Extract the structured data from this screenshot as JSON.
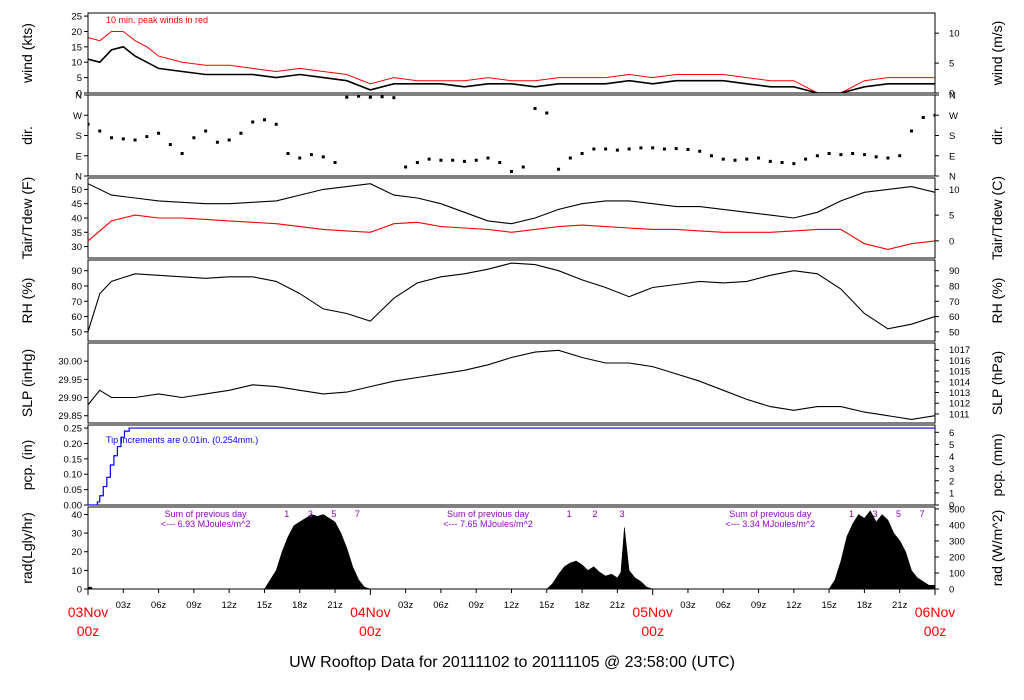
{
  "title": "UW Rooftop Data for 20111102  to  20111105 @ 23:58:00  (UTC)",
  "colors": {
    "title": "#0000cc",
    "date_labels": "#ff0000",
    "peak": "#ff0000",
    "tdew": "#ff0000",
    "precip": "#0000ff",
    "annotation": "#9900cc",
    "line": "#000000"
  },
  "chart_data": [
    {
      "name": "wind",
      "type": "line",
      "ylabel_left": "wind (kts)",
      "ylabel_right": "wind (m/s)",
      "ylim": [
        0,
        26
      ],
      "yticks_left": [
        0,
        5,
        10,
        15,
        20,
        25
      ],
      "yticks_right_values": [
        0,
        5,
        10
      ],
      "ytick_right_factor": 0.5144,
      "annotation": "10 min. peak winds in red",
      "series": [
        {
          "x": [
            0,
            1,
            2,
            3,
            4,
            5,
            6,
            8,
            10,
            12,
            14,
            16,
            18,
            20,
            22,
            24,
            26,
            28,
            30,
            32,
            34,
            36,
            38,
            40,
            42,
            44,
            46,
            48,
            50,
            52,
            54,
            56,
            58,
            60,
            62,
            64,
            66,
            68,
            70,
            72
          ],
          "y": [
            11,
            10,
            14,
            15,
            12,
            10,
            8,
            7,
            6,
            6,
            6,
            5,
            6,
            5,
            4,
            1,
            3,
            3,
            3,
            2,
            3,
            3,
            2,
            3,
            3,
            3,
            4,
            3,
            4,
            4,
            4,
            3,
            2,
            2,
            0,
            0,
            2,
            3,
            3,
            3
          ]
        },
        {
          "x": [
            0,
            1,
            2,
            3,
            4,
            5,
            6,
            8,
            10,
            12,
            14,
            16,
            18,
            20,
            22,
            24,
            26,
            28,
            30,
            32,
            34,
            36,
            38,
            40,
            42,
            44,
            46,
            48,
            50,
            52,
            54,
            56,
            58,
            60,
            62,
            64,
            66,
            68,
            70,
            72
          ],
          "y": [
            18,
            17,
            20,
            20,
            17,
            15,
            12,
            10,
            9,
            9,
            8,
            7,
            8,
            7,
            6,
            3,
            5,
            4,
            4,
            4,
            5,
            4,
            4,
            5,
            5,
            5,
            6,
            5,
            6,
            6,
            6,
            5,
            4,
            4,
            0,
            0,
            4,
            5,
            5,
            5
          ]
        }
      ]
    },
    {
      "name": "dir",
      "type": "scatter",
      "ylabel_left": "dir.",
      "ylabel_right": "dir.",
      "ylim": [
        0,
        360
      ],
      "ytick_values": [
        0,
        90,
        180,
        270,
        360
      ],
      "ytick_labels": [
        "N",
        "E",
        "S",
        "W",
        "N"
      ],
      "x": [
        0,
        1,
        2,
        3,
        4,
        5,
        6,
        7,
        8,
        9,
        10,
        11,
        12,
        13,
        14,
        15,
        16,
        17,
        18,
        19,
        20,
        21,
        22,
        23,
        24,
        25,
        26,
        27,
        28,
        29,
        30,
        31,
        32,
        33,
        34,
        35,
        36,
        37,
        38,
        39,
        40,
        41,
        42,
        43,
        44,
        45,
        46,
        47,
        48,
        49,
        50,
        51,
        52,
        53,
        54,
        55,
        56,
        57,
        58,
        59,
        60,
        61,
        62,
        63,
        64,
        65,
        66,
        67,
        68,
        69,
        70,
        71,
        72
      ],
      "y": [
        230,
        200,
        170,
        165,
        160,
        175,
        190,
        140,
        100,
        170,
        200,
        150,
        160,
        190,
        240,
        250,
        230,
        100,
        80,
        95,
        85,
        60,
        350,
        355,
        350,
        352,
        348,
        40,
        60,
        75,
        70,
        70,
        65,
        70,
        80,
        60,
        20,
        40,
        300,
        280,
        30,
        80,
        100,
        120,
        120,
        115,
        120,
        125,
        125,
        120,
        122,
        118,
        110,
        90,
        75,
        70,
        75,
        80,
        65,
        60,
        55,
        75,
        90,
        100,
        95,
        100,
        95,
        85,
        80,
        90,
        200,
        260,
        270
      ]
    },
    {
      "name": "temp",
      "type": "line",
      "ylabel_left": "Tair/Tdew (F)",
      "ylabel_right": "Tair/Tdew (C)",
      "ylim": [
        26,
        54
      ],
      "yticks_left": [
        30,
        35,
        40,
        45,
        50
      ],
      "yticks_right_values": [
        0,
        5,
        10
      ],
      "series": [
        {
          "name": "Tair",
          "x": [
            0,
            2,
            4,
            6,
            8,
            10,
            12,
            14,
            16,
            18,
            20,
            22,
            24,
            26,
            28,
            30,
            32,
            34,
            36,
            38,
            40,
            42,
            44,
            46,
            48,
            50,
            52,
            54,
            56,
            58,
            60,
            62,
            64,
            66,
            68,
            70,
            72
          ],
          "y": [
            52,
            48,
            47,
            46,
            45.5,
            45,
            45,
            45.5,
            46,
            48,
            50,
            51,
            52,
            48,
            47,
            45,
            42,
            39,
            38,
            40,
            43,
            45,
            46,
            46,
            45,
            44,
            44,
            43,
            42,
            41,
            40,
            42,
            46,
            49,
            50,
            51,
            49
          ]
        },
        {
          "name": "Tdew",
          "x": [
            0,
            2,
            4,
            6,
            8,
            10,
            12,
            14,
            16,
            18,
            20,
            22,
            24,
            26,
            28,
            30,
            32,
            34,
            36,
            38,
            40,
            42,
            44,
            46,
            48,
            50,
            52,
            54,
            56,
            58,
            60,
            62,
            64,
            66,
            68,
            70,
            72
          ],
          "y": [
            32,
            39,
            41,
            40,
            40,
            39.5,
            39,
            38.5,
            38,
            37,
            36,
            35.5,
            35,
            38,
            38.5,
            37,
            36.5,
            36,
            35,
            36,
            37,
            37.5,
            37,
            36.5,
            36,
            36,
            35.5,
            35,
            35,
            35,
            35.5,
            36,
            36,
            31,
            29,
            31,
            32
          ]
        }
      ]
    },
    {
      "name": "rh",
      "type": "line",
      "ylabel_left": "RH (%)",
      "ylabel_right": "RH (%)",
      "ylim": [
        44,
        97
      ],
      "yticks_left": [
        50,
        60,
        70,
        80,
        90
      ],
      "yticks_right_values": [
        50,
        60,
        70,
        80,
        90
      ],
      "series": [
        {
          "x": [
            0,
            1,
            2,
            4,
            6,
            8,
            10,
            12,
            14,
            16,
            18,
            20,
            22,
            24,
            26,
            28,
            30,
            32,
            34,
            36,
            38,
            40,
            42,
            44,
            46,
            48,
            50,
            52,
            54,
            56,
            58,
            60,
            62,
            64,
            66,
            68,
            70,
            72
          ],
          "y": [
            50,
            75,
            83,
            88,
            87,
            86,
            85,
            86,
            86,
            83,
            75,
            65,
            62,
            57,
            72,
            82,
            86,
            88,
            91,
            95,
            94,
            90,
            84,
            79,
            73,
            79,
            81,
            83,
            82,
            83,
            87,
            90,
            88,
            78,
            62,
            52,
            55,
            60
          ]
        }
      ]
    },
    {
      "name": "slp",
      "type": "line",
      "ylabel_left": "SLP (inHg)",
      "ylabel_right": "SLP (hPa)",
      "ylim": [
        29.83,
        30.05
      ],
      "yticks_left": [
        29.85,
        29.9,
        29.95,
        30.0
      ],
      "ytick_left_labels": [
        "29.85",
        "29.90",
        "29.95",
        "30.00"
      ],
      "yticks_right_values": [
        1011,
        1012,
        1013,
        1014,
        1015,
        1016,
        1017
      ],
      "series": [
        {
          "x": [
            0,
            1,
            2,
            4,
            6,
            8,
            10,
            12,
            14,
            16,
            18,
            20,
            22,
            24,
            26,
            28,
            30,
            32,
            34,
            36,
            38,
            40,
            42,
            44,
            46,
            48,
            50,
            52,
            54,
            56,
            58,
            60,
            62,
            64,
            66,
            68,
            70,
            72
          ],
          "y": [
            29.88,
            29.92,
            29.9,
            29.9,
            29.91,
            29.9,
            29.91,
            29.92,
            29.935,
            29.93,
            29.92,
            29.91,
            29.915,
            29.93,
            29.945,
            29.955,
            29.965,
            29.975,
            29.99,
            30.01,
            30.025,
            30.03,
            30.01,
            29.995,
            29.995,
            29.985,
            29.965,
            29.945,
            29.92,
            29.895,
            29.875,
            29.865,
            29.875,
            29.875,
            29.86,
            29.85,
            29.84,
            29.85
          ]
        }
      ]
    },
    {
      "name": "pcp",
      "type": "line",
      "ylabel_left": "pcp. (in)",
      "ylabel_right": "pcp. (mm)",
      "ylim": [
        0,
        0.26
      ],
      "yticks_left": [
        0,
        0.05,
        0.1,
        0.15,
        0.2,
        0.25
      ],
      "ytick_left_labels": [
        "0.00",
        "0.05",
        "0.10",
        "0.15",
        "0.20",
        "0.25"
      ],
      "yticks_right_values": [
        0,
        1,
        2,
        3,
        4,
        5,
        6
      ],
      "annotation": "Tip increments are 0.01in. (0.254mm.)",
      "series": [
        {
          "x": [
            0,
            0.6,
            0.8,
            1.0,
            1.3,
            1.6,
            1.9,
            2.2,
            2.5,
            2.8,
            3.1,
            3.5,
            4.0,
            72
          ],
          "y": [
            0,
            0,
            0.01,
            0.03,
            0.06,
            0.09,
            0.13,
            0.16,
            0.19,
            0.22,
            0.24,
            0.25,
            0.25,
            0.25
          ]
        }
      ]
    },
    {
      "name": "rad",
      "type": "area",
      "ylabel_left": "rad(Lgly/hr)",
      "ylabel_right": "rad (W/m^2)",
      "ylim": [
        0,
        44
      ],
      "yticks_left": [
        0,
        10,
        20,
        30,
        40
      ],
      "yticks_right_values": [
        0,
        100,
        200,
        300,
        400,
        500
      ],
      "series": [
        {
          "x": [
            0,
            0.3,
            0.4,
            15,
            15.5,
            16,
            16.5,
            17,
            17.5,
            18,
            18.5,
            19,
            19.5,
            20,
            20.5,
            21,
            21.5,
            22,
            22.5,
            23,
            23.5,
            24,
            39,
            39.5,
            40,
            40.5,
            41,
            41.5,
            42,
            42.5,
            43,
            43.5,
            44,
            44.5,
            45,
            45.3,
            45.6,
            46,
            46.5,
            47,
            47.5,
            48,
            63,
            63.5,
            64,
            64.5,
            65,
            65.5,
            66,
            66.5,
            67,
            67.5,
            68,
            68.5,
            69,
            69.5,
            70,
            70.5,
            71,
            71.5,
            72
          ],
          "y": [
            1,
            1,
            0,
            0,
            5,
            10,
            20,
            28,
            34,
            36,
            38,
            40,
            39,
            40,
            38,
            36,
            30,
            22,
            12,
            5,
            1,
            0,
            0,
            3,
            8,
            12,
            14,
            15,
            13,
            10,
            12,
            9,
            7,
            8,
            6,
            9,
            33,
            10,
            6,
            4,
            1,
            0,
            0,
            5,
            15,
            28,
            35,
            40,
            38,
            42,
            36,
            40,
            37,
            30,
            26,
            20,
            10,
            6,
            4,
            2,
            2
          ]
        }
      ],
      "day_markers": [
        {
          "text": "1",
          "x": 16.9
        },
        {
          "text": "3",
          "x": 18.9
        },
        {
          "text": "5",
          "x": 20.9
        },
        {
          "text": "7",
          "x": 22.9
        },
        {
          "text": "1",
          "x": 40.9
        },
        {
          "text": "2",
          "x": 43.1
        },
        {
          "text": "3",
          "x": 45.4
        },
        {
          "text": "1",
          "x": 64.9
        },
        {
          "text": "3",
          "x": 66.9
        },
        {
          "text": "5",
          "x": 68.9
        },
        {
          "text": "7",
          "x": 70.9
        }
      ],
      "annotations": [
        {
          "line1": "Sum of previous day",
          "line2": "<--- 6.93 MJoules/m^2",
          "x": 10
        },
        {
          "line1": "Sum of previous day",
          "line2": "<--- 7.65 MJoules/m^2",
          "x": 34
        },
        {
          "line1": "Sum of previous day",
          "line2": "<--- 3.34 MJoules/m^2",
          "x": 58
        }
      ]
    }
  ],
  "x_axis": {
    "xlim": [
      0,
      72
    ],
    "hour_ticks": [
      {
        "x": 3,
        "label": "03z"
      },
      {
        "x": 6,
        "label": "06z"
      },
      {
        "x": 9,
        "label": "09z"
      },
      {
        "x": 12,
        "label": "12z"
      },
      {
        "x": 15,
        "label": "15z"
      },
      {
        "x": 18,
        "label": "18z"
      },
      {
        "x": 21,
        "label": "21z"
      },
      {
        "x": 27,
        "label": "03z"
      },
      {
        "x": 30,
        "label": "06z"
      },
      {
        "x": 33,
        "label": "09z"
      },
      {
        "x": 36,
        "label": "12z"
      },
      {
        "x": 39,
        "label": "15z"
      },
      {
        "x": 42,
        "label": "18z"
      },
      {
        "x": 45,
        "label": "21z"
      },
      {
        "x": 51,
        "label": "03z"
      },
      {
        "x": 54,
        "label": "06z"
      },
      {
        "x": 57,
        "label": "09z"
      },
      {
        "x": 60,
        "label": "12z"
      },
      {
        "x": 63,
        "label": "15z"
      },
      {
        "x": 66,
        "label": "18z"
      },
      {
        "x": 69,
        "label": "21z"
      }
    ],
    "date_ticks": [
      {
        "x": 0,
        "line1": "03Nov",
        "line2": "00z"
      },
      {
        "x": 24,
        "line1": "04Nov",
        "line2": "00z"
      },
      {
        "x": 48,
        "line1": "05Nov",
        "line2": "00z"
      },
      {
        "x": 72,
        "line1": "06Nov",
        "line2": "00z"
      }
    ]
  }
}
